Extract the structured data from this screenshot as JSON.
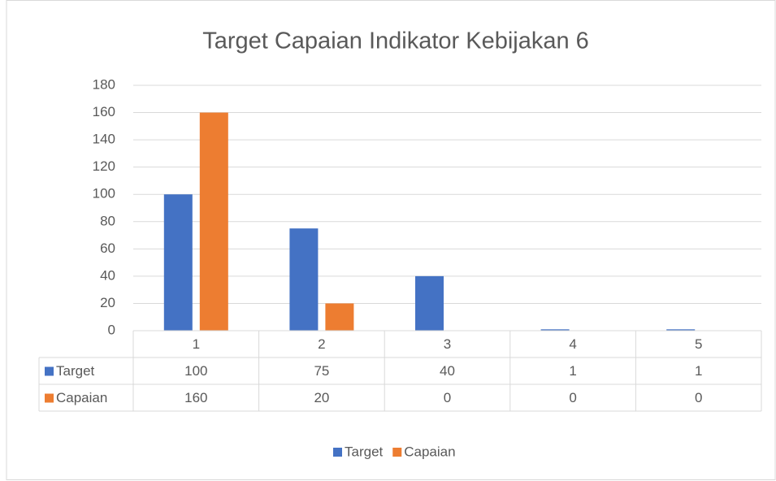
{
  "chart_data": {
    "type": "bar",
    "title": "Target Capaian Indikator Kebijakan 6",
    "categories": [
      "1",
      "2",
      "3",
      "4",
      "5"
    ],
    "series": [
      {
        "name": "Target",
        "color": "#4472c4",
        "values": [
          100,
          75,
          40,
          1,
          1
        ]
      },
      {
        "name": "Capaian",
        "color": "#ed7d31",
        "values": [
          160,
          20,
          0,
          0,
          0
        ]
      }
    ],
    "ylim": [
      0,
      180
    ],
    "yticks": [
      0,
      20,
      40,
      60,
      80,
      100,
      120,
      140,
      160,
      180
    ],
    "grid": true,
    "data_table": true,
    "legend": "bottom"
  }
}
